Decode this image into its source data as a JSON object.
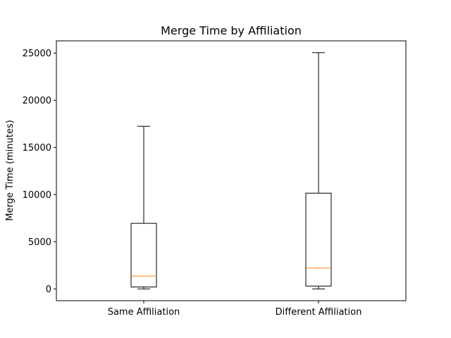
{
  "chart_data": {
    "type": "box",
    "title": "Merge Time by Affiliation",
    "xlabel": "",
    "ylabel": "Merge Time (minutes)",
    "ylim": [
      -1250,
      26300
    ],
    "yticks": [
      0,
      5000,
      10000,
      15000,
      20000,
      25000
    ],
    "ytick_labels": [
      "0",
      "5000",
      "10000",
      "15000",
      "20000",
      "25000"
    ],
    "categories": [
      "Same Affiliation",
      "Different Affiliation"
    ],
    "boxes": [
      {
        "category": "Same Affiliation",
        "whisker_low": 0,
        "q1": 200,
        "median": 1350,
        "q3": 6950,
        "whisker_high": 17250
      },
      {
        "category": "Different Affiliation",
        "whisker_low": 0,
        "q1": 300,
        "median": 2200,
        "q3": 10150,
        "whisker_high": 25050
      }
    ],
    "colors": {
      "box": "#000000",
      "median": "#ff7f0e",
      "axes": "#000000"
    },
    "grid": false,
    "legend": "none"
  }
}
